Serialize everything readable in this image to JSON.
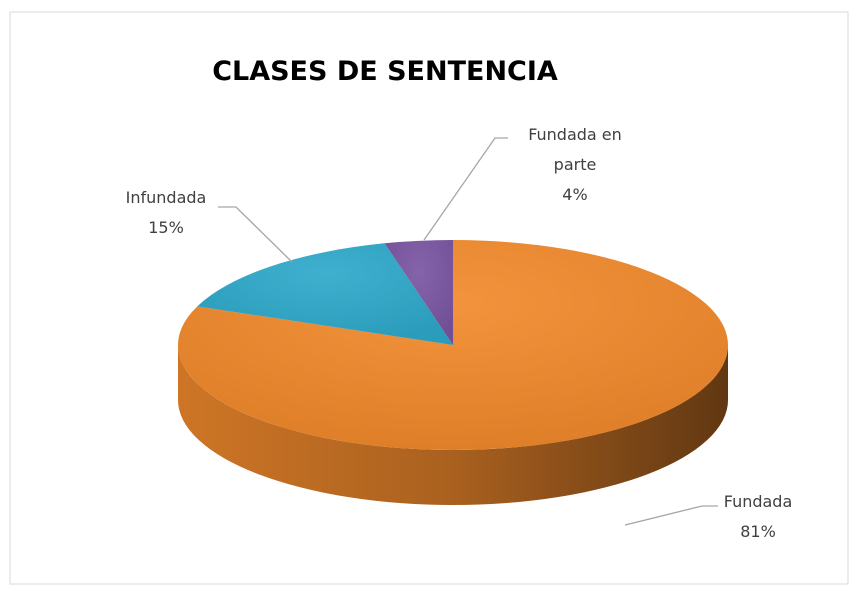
{
  "chart_data": {
    "type": "pie",
    "title": "CLASES DE SENTENCIA",
    "categories": [
      "Fundada",
      "Infundada",
      "Fundada en parte"
    ],
    "values": [
      81,
      15,
      4
    ],
    "value_labels": [
      "81%",
      "15%",
      "4%"
    ],
    "colors": [
      "#f28a2c",
      "#2fa9cb",
      "#7b56a3"
    ]
  }
}
